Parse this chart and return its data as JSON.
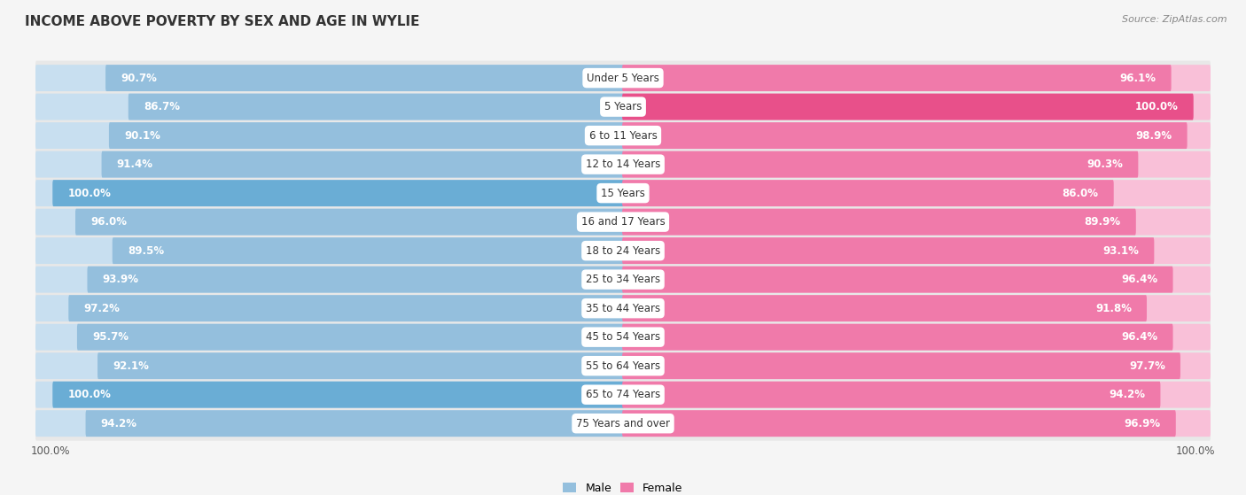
{
  "title": "INCOME ABOVE POVERTY BY SEX AND AGE IN WYLIE",
  "source": "Source: ZipAtlas.com",
  "categories": [
    "Under 5 Years",
    "5 Years",
    "6 to 11 Years",
    "12 to 14 Years",
    "15 Years",
    "16 and 17 Years",
    "18 to 24 Years",
    "25 to 34 Years",
    "35 to 44 Years",
    "45 to 54 Years",
    "55 to 64 Years",
    "65 to 74 Years",
    "75 Years and over"
  ],
  "male_values": [
    90.7,
    86.7,
    90.1,
    91.4,
    100.0,
    96.0,
    89.5,
    93.9,
    97.2,
    95.7,
    92.1,
    100.0,
    94.2
  ],
  "female_values": [
    96.1,
    100.0,
    98.9,
    90.3,
    86.0,
    89.9,
    93.1,
    96.4,
    91.8,
    96.4,
    97.7,
    94.2,
    96.9
  ],
  "male_color": "#94bfdd",
  "female_color": "#f07aaa",
  "male_color_light": "#c8dff0",
  "female_color_light": "#f9c0d8",
  "male_color_full": "#6aadd5",
  "female_color_full": "#e8508a",
  "bg_color": "#f5f5f5",
  "row_bg_color": "#ffffff",
  "title_fontsize": 11,
  "label_fontsize": 8.5,
  "value_fontsize": 8.5,
  "legend_fontsize": 9,
  "max_value": 100.0,
  "x_label": "100.0%"
}
